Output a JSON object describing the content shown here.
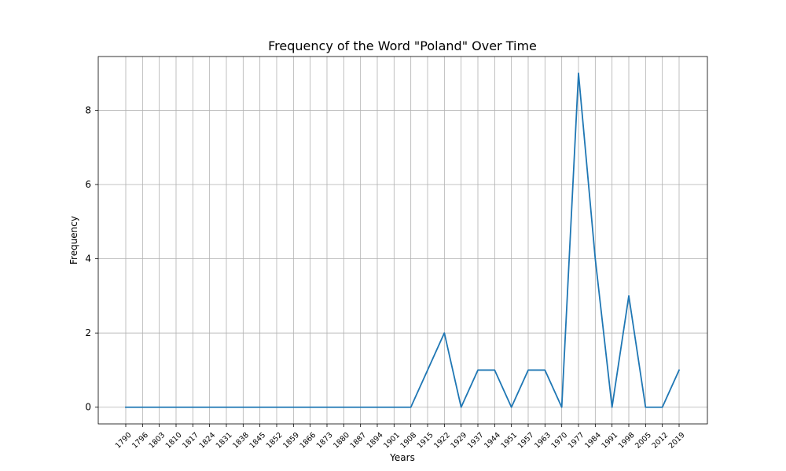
{
  "chart_data": {
    "type": "line",
    "title": "Frequency of the Word \"Poland\" Over Time",
    "xlabel": "Years",
    "ylabel": "Frequency",
    "grid": true,
    "ylim": [
      -0.45,
      9.45
    ],
    "yticks": [
      0,
      2,
      4,
      6,
      8
    ],
    "line_color": "#1f77b4",
    "x": [
      "1790",
      "1796",
      "1803",
      "1810",
      "1817",
      "1824",
      "1831",
      "1838",
      "1845",
      "1852",
      "1859",
      "1866",
      "1873",
      "1880",
      "1887",
      "1894",
      "1901",
      "1908",
      "1915",
      "1922",
      "1929",
      "1937",
      "1944",
      "1951",
      "1957",
      "1963",
      "1970",
      "1977",
      "1984",
      "1991",
      "1998",
      "2005",
      "2012",
      "2019"
    ],
    "values": [
      0,
      0,
      0,
      0,
      0,
      0,
      0,
      0,
      0,
      0,
      0,
      0,
      0,
      0,
      0,
      0,
      0,
      0,
      1,
      2,
      0,
      1,
      1,
      0,
      1,
      1,
      0,
      9,
      4,
      0,
      3,
      0,
      0,
      1
    ]
  }
}
